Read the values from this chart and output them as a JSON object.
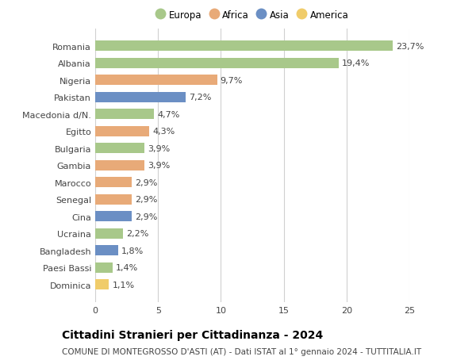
{
  "countries": [
    "Romania",
    "Albania",
    "Nigeria",
    "Pakistan",
    "Macedonia d/N.",
    "Egitto",
    "Bulgaria",
    "Gambia",
    "Marocco",
    "Senegal",
    "Cina",
    "Ucraina",
    "Bangladesh",
    "Paesi Bassi",
    "Dominica"
  ],
  "values": [
    23.7,
    19.4,
    9.7,
    7.2,
    4.7,
    4.3,
    3.9,
    3.9,
    2.9,
    2.9,
    2.9,
    2.2,
    1.8,
    1.4,
    1.1
  ],
  "continents": [
    "Europa",
    "Europa",
    "Africa",
    "Asia",
    "Europa",
    "Africa",
    "Europa",
    "Africa",
    "Africa",
    "Africa",
    "Asia",
    "Europa",
    "Asia",
    "Europa",
    "America"
  ],
  "continent_colors": {
    "Europa": "#a8c88a",
    "Africa": "#e8aa78",
    "Asia": "#6b8fc4",
    "America": "#f0cc6a"
  },
  "legend_order": [
    "Europa",
    "Africa",
    "Asia",
    "America"
  ],
  "title": "Cittadini Stranieri per Cittadinanza - 2024",
  "subtitle": "COMUNE DI MONTEGROSSO D'ASTI (AT) - Dati ISTAT al 1° gennaio 2024 - TUTTITALIA.IT",
  "xlim": [
    0,
    25
  ],
  "xticks": [
    0,
    5,
    10,
    15,
    20,
    25
  ],
  "background_color": "#ffffff",
  "grid_color": "#d0d0d0",
  "bar_height": 0.6,
  "label_fontsize": 8,
  "title_fontsize": 10,
  "subtitle_fontsize": 7.5,
  "tick_fontsize": 8,
  "legend_fontsize": 8.5
}
